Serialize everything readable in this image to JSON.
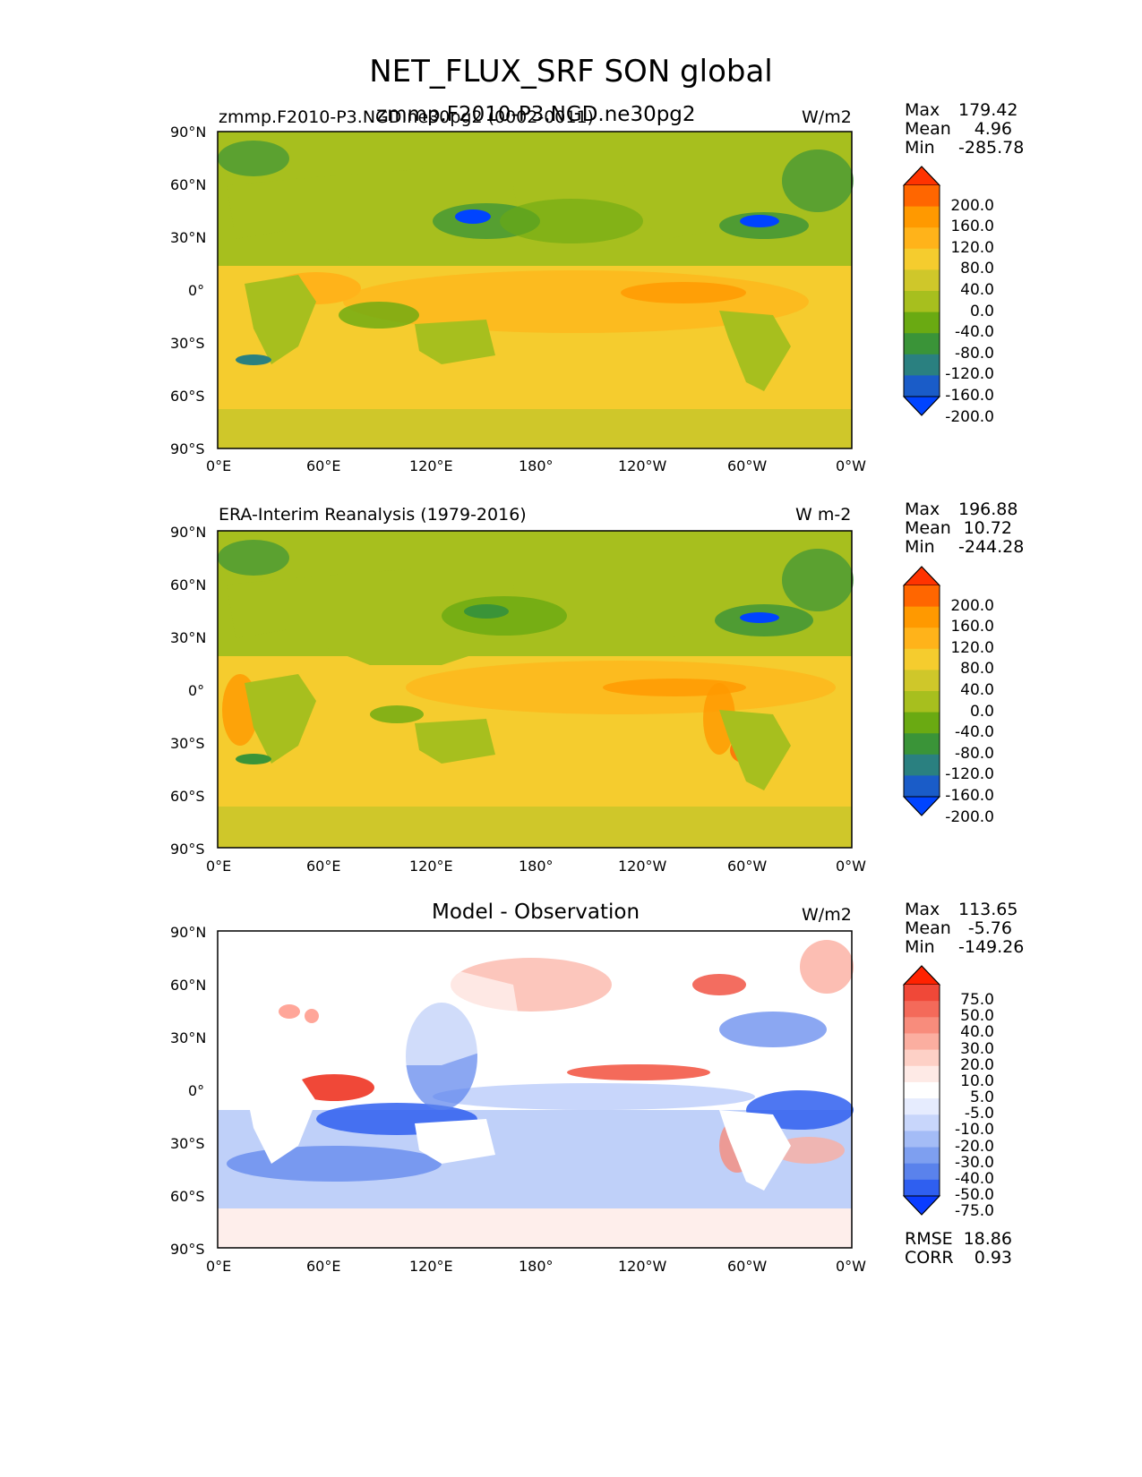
{
  "title": "NET_FLUX_SRF SON global",
  "panels": [
    {
      "id": "model",
      "title_left": "zmmp.F2010-P3.NGD.ne30pg2 (0002-0011)",
      "title_center": "zmmp.F2010-P3.NGD.ne30pg2",
      "units": "W/m2",
      "stats": {
        "max_label": "Max",
        "max": "179.42",
        "mean_label": "Mean",
        "mean": "4.96",
        "min_label": "Min",
        "min": "-285.78"
      },
      "colorbar": {
        "levels": [
          "200.0",
          "160.0",
          "120.0",
          "80.0",
          "40.0",
          "0.0",
          "-40.0",
          "-80.0",
          "-120.0",
          "-160.0",
          "-200.0"
        ],
        "colors": [
          "#ff3300",
          "#ff6600",
          "#ff9900",
          "#ffb31a",
          "#f5cc2e",
          "#cfc72a",
          "#a7bf1e",
          "#6aaa12",
          "#3a9438",
          "#2a8080",
          "#1a5cc8",
          "#0044ff"
        ]
      }
    },
    {
      "id": "obs",
      "title_left": "ERA-Interim Reanalysis (1979-2016)",
      "units": "W m-2",
      "stats": {
        "max_label": "Max",
        "max": "196.88",
        "mean_label": "Mean",
        "mean": "10.72",
        "min_label": "Min",
        "min": "-244.28"
      },
      "colorbar": {
        "levels": [
          "200.0",
          "160.0",
          "120.0",
          "80.0",
          "40.0",
          "0.0",
          "-40.0",
          "-80.0",
          "-120.0",
          "-160.0",
          "-200.0"
        ],
        "colors": [
          "#ff3300",
          "#ff6600",
          "#ff9900",
          "#ffb31a",
          "#f5cc2e",
          "#cfc72a",
          "#a7bf1e",
          "#6aaa12",
          "#3a9438",
          "#2a8080",
          "#1a5cc8",
          "#0044ff"
        ]
      }
    },
    {
      "id": "diff",
      "title_center": "Model - Observation",
      "units": "W/m2",
      "stats": {
        "max_label": "Max",
        "max": "113.65",
        "mean_label": "Mean",
        "mean": "-5.76",
        "min_label": "Min",
        "min": "-149.26",
        "rmse_label": "RMSE",
        "rmse": "18.86",
        "corr_label": "CORR",
        "corr": "0.93"
      },
      "colorbar": {
        "levels": [
          "75.0",
          "50.0",
          "40.0",
          "30.0",
          "20.0",
          "10.0",
          "5.0",
          "-5.0",
          "-10.0",
          "-20.0",
          "-30.0",
          "-40.0",
          "-50.0",
          "-75.0"
        ],
        "colors": [
          "#ff2200",
          "#f04838",
          "#f46a5a",
          "#f88c7c",
          "#fbaea0",
          "#fdd0c6",
          "#feeae6",
          "#ffffff",
          "#e6ecfe",
          "#c8d6fb",
          "#a4bcf6",
          "#7e9ff0",
          "#5a82ec",
          "#2f5ff0",
          "#0a3cff"
        ]
      }
    }
  ],
  "axes": {
    "lat_ticks": [
      "90°N",
      "60°N",
      "30°N",
      "0°",
      "30°S",
      "60°S",
      "90°S"
    ],
    "lon_ticks": [
      "0°E",
      "60°E",
      "120°E",
      "180°",
      "120°W",
      "60°W",
      "0°W"
    ]
  }
}
